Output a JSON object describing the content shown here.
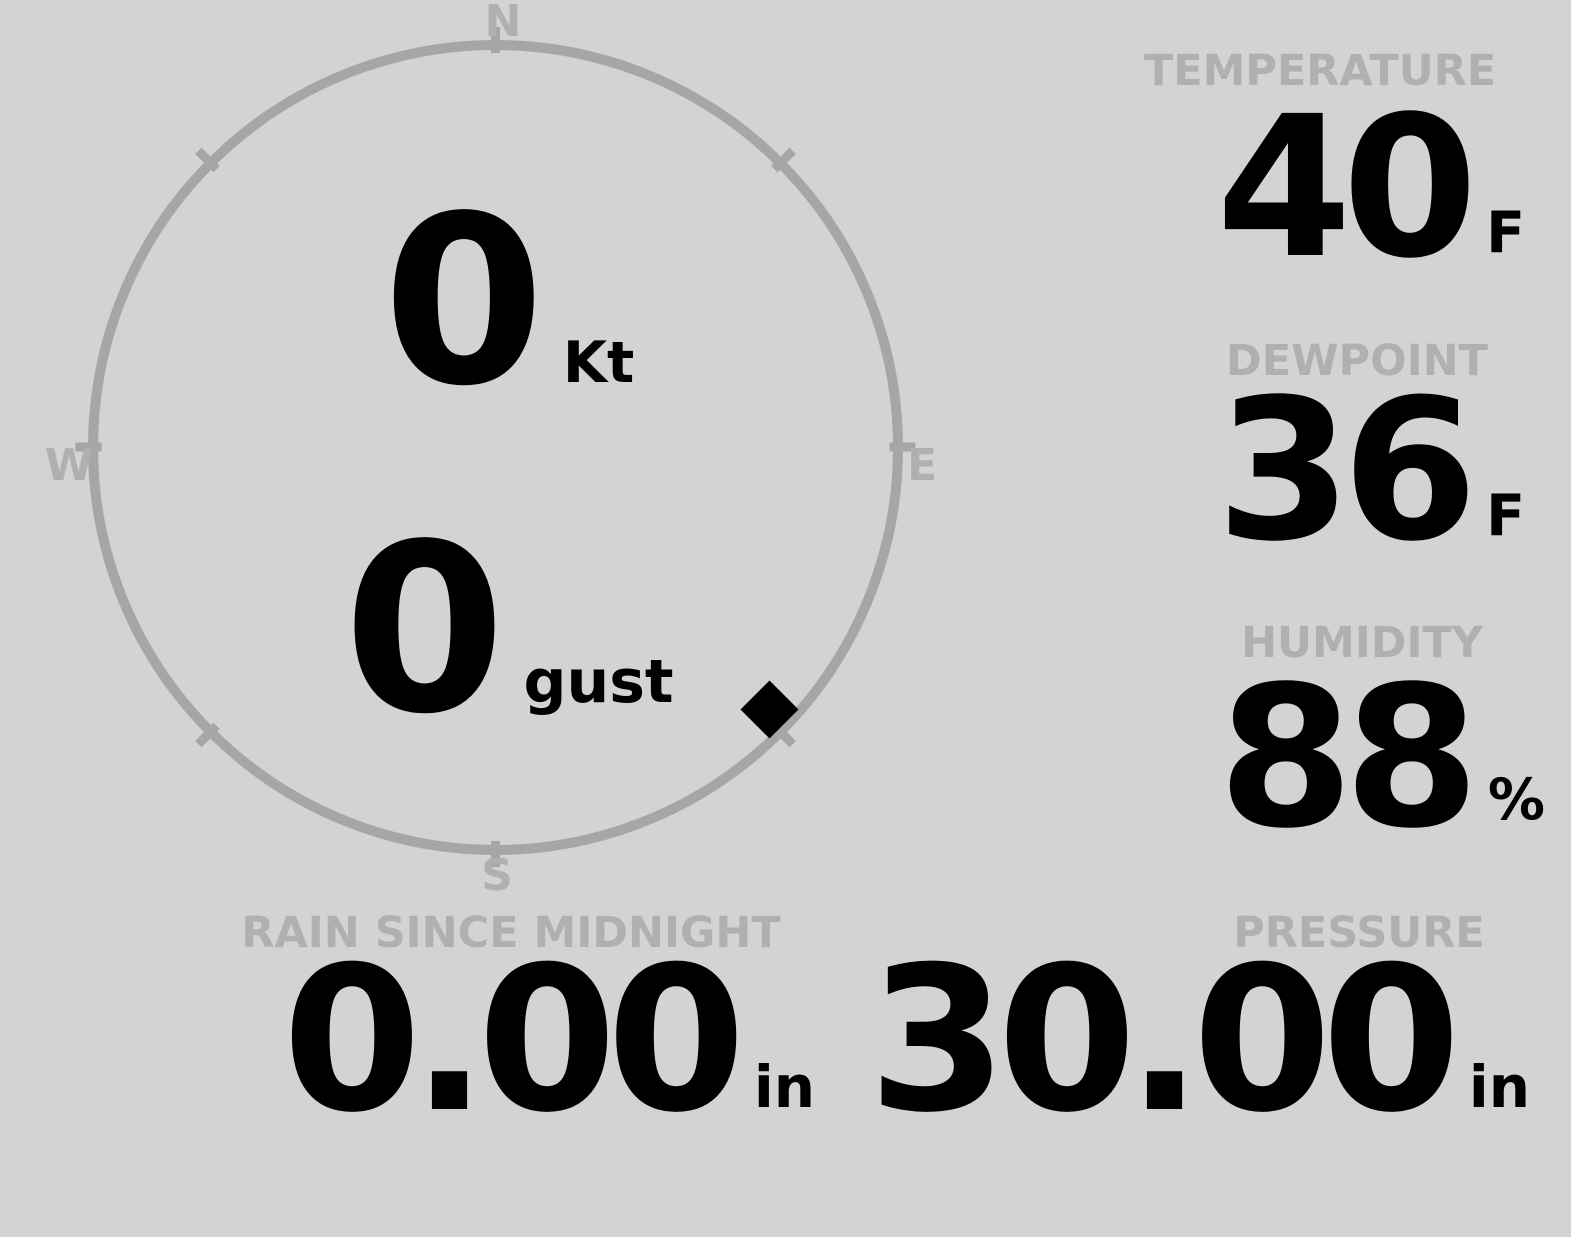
{
  "colors": {
    "background": "#d3d3d3",
    "muted_gray": "#b0b0b0",
    "ring_gray": "#a6a6a6",
    "value_black": "#000000"
  },
  "compass": {
    "cardinals": {
      "n": "N",
      "e": "E",
      "s": "S",
      "w": "W"
    },
    "wind_speed": {
      "value": "0",
      "unit": "Kt"
    },
    "wind_gust": {
      "value": "0",
      "unit": "gust"
    },
    "direction_marker": {
      "shape": "diamond",
      "bearing_deg": 135,
      "toward": "SE"
    }
  },
  "metrics": {
    "temperature": {
      "label": "TEMPERATURE",
      "value": "40",
      "unit": "F"
    },
    "dewpoint": {
      "label": "DEWPOINT",
      "value": "36",
      "unit": "F"
    },
    "humidity": {
      "label": "HUMIDITY",
      "value": "88",
      "unit": "%"
    },
    "rain": {
      "label": "RAIN SINCE MIDNIGHT",
      "value": "0.00",
      "unit": "in"
    },
    "pressure": {
      "label": "PRESSURE",
      "value": "30.00",
      "unit": "in"
    }
  }
}
